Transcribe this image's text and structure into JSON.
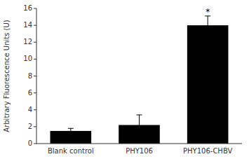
{
  "chart_data": {
    "type": "bar",
    "categories": [
      "Blank control",
      "PHY106",
      "PHY106-CHBV"
    ],
    "values": [
      1.5,
      2.2,
      14.0
    ],
    "errors": [
      0.3,
      1.2,
      1.1
    ],
    "color": "#000000",
    "ylabel": "Arbitrary Fluorescence Units (U)",
    "ylim": [
      0,
      16
    ],
    "yticks": [
      0,
      2,
      4,
      6,
      8,
      10,
      12,
      14,
      16
    ],
    "grid": false,
    "annotations": [
      {
        "text": "*",
        "category": "PHY106-CHBV"
      }
    ]
  }
}
